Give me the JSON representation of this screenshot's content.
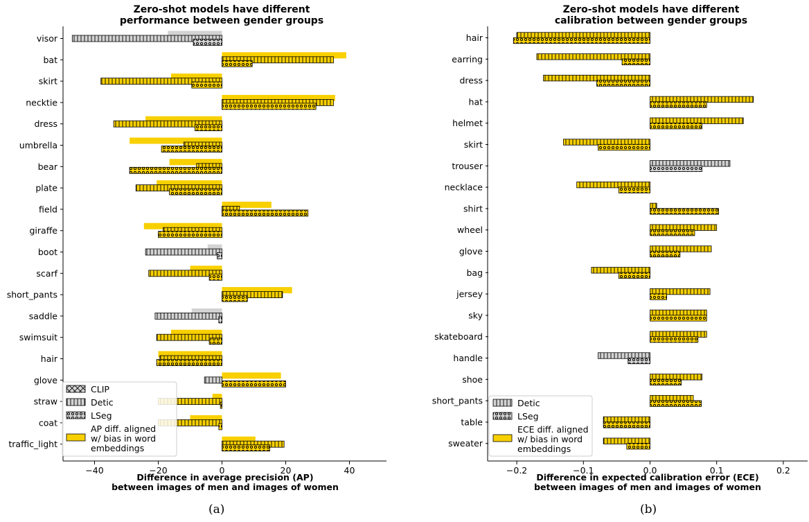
{
  "colors": {
    "bar_fill": "#f8d000",
    "other_fill": "#d3d3d3",
    "edge": "#000000"
  },
  "chart_data": [
    {
      "type": "bar",
      "orientation": "horizontal",
      "title_lines": [
        "Zero-shot models have different",
        "performance between gender groups"
      ],
      "xlabel_lines": [
        "Difference in average precision (AP)",
        "between images of men and images of women"
      ],
      "caption": "(a)",
      "xlim": [
        -50,
        50
      ],
      "xticks": [
        -40,
        -20,
        0,
        20,
        40
      ],
      "tick_labels": [
        "−40",
        "−20",
        "0",
        "20",
        "40"
      ],
      "grid": false,
      "legend_position": "bottom-left",
      "legend": [
        {
          "name": "CLIP",
          "swatch": "hatch-x"
        },
        {
          "name": "Detic",
          "swatch": "hatch-vertical"
        },
        {
          "name": "LSeg",
          "swatch": "dots"
        },
        {
          "name": "AP diff. aligned w/ bias in word embeddings",
          "lines": [
            "AP diff. aligned",
            "w/ bias in word",
            "embeddings"
          ],
          "swatch": "aligned"
        }
      ],
      "categories": [
        "visor",
        "bat",
        "skirt",
        "necktie",
        "dress",
        "umbrella",
        "bear",
        "plate",
        "field",
        "giraffe",
        "boot",
        "scarf",
        "short_pants",
        "saddle",
        "swimsuit",
        "hair",
        "glove",
        "straw",
        "coat",
        "traffic_light"
      ],
      "series": [
        {
          "name": "CLIP",
          "values": [
            -17,
            39,
            -16,
            35.5,
            -24,
            -29,
            -16.5,
            -20.5,
            15.5,
            -24.5,
            -4.5,
            -10,
            22,
            -9.5,
            -16,
            -20,
            18.5,
            -3,
            -10,
            10.5
          ],
          "aligned": [
            false,
            true,
            true,
            true,
            true,
            true,
            true,
            true,
            true,
            true,
            false,
            true,
            true,
            false,
            true,
            true,
            true,
            true,
            true,
            true
          ]
        },
        {
          "name": "Detic",
          "values": [
            -47,
            35,
            -38,
            35,
            -34,
            -12,
            -8,
            -27,
            5.5,
            -18.5,
            -24,
            -23,
            19,
            -21,
            -20.5,
            -19.5,
            -5.5,
            -20,
            -20,
            19.5
          ],
          "aligned": [
            false,
            true,
            true,
            true,
            true,
            true,
            true,
            true,
            true,
            true,
            false,
            true,
            true,
            false,
            true,
            true,
            false,
            true,
            true,
            true
          ]
        },
        {
          "name": "LSeg",
          "values": [
            -9,
            9.5,
            -9.5,
            29.5,
            -8.5,
            -19,
            -29,
            -16.5,
            27,
            -20,
            -1.5,
            -4,
            8,
            -1,
            -4,
            -20.5,
            20,
            -0.5,
            -1,
            15
          ],
          "aligned": [
            false,
            true,
            true,
            true,
            true,
            true,
            true,
            true,
            true,
            true,
            false,
            true,
            true,
            false,
            true,
            true,
            true,
            true,
            true,
            true
          ]
        }
      ]
    },
    {
      "type": "bar",
      "orientation": "horizontal",
      "title_lines": [
        "Zero-shot models have different",
        "calibration between gender groups"
      ],
      "xlabel_lines": [
        "Difference in expected calibration error (ECE)",
        "between images of men and images of women"
      ],
      "caption": "(b)",
      "xlim": [
        -0.25,
        0.25
      ],
      "xticks": [
        -0.2,
        -0.1,
        0.0,
        0.1,
        0.2
      ],
      "tick_labels": [
        "−0.2",
        "−0.1",
        "0.0",
        "0.1",
        "0.2"
      ],
      "grid": false,
      "legend_position": "bottom-left",
      "legend": [
        {
          "name": "Detic",
          "swatch": "hatch-vertical"
        },
        {
          "name": "LSeg",
          "swatch": "dots"
        },
        {
          "name": "ECE diff. aligned w/ bias in word embeddings",
          "lines": [
            "ECE diff. aligned",
            "w/ bias in word",
            "embeddings"
          ],
          "swatch": "aligned"
        }
      ],
      "categories": [
        "hair",
        "earring",
        "dress",
        "hat",
        "helmet",
        "skirt",
        "trouser",
        "necklace",
        "shirt",
        "wheel",
        "glove",
        "bag",
        "jersey",
        "sky",
        "skateboard",
        "handle",
        "shoe",
        "short_pants",
        "table",
        "sweater"
      ],
      "series": [
        {
          "name": "Detic",
          "values": [
            -0.2,
            -0.17,
            -0.16,
            0.155,
            0.14,
            -0.13,
            0.12,
            -0.11,
            0.01,
            0.1,
            0.092,
            -0.088,
            0.09,
            0.085,
            0.085,
            -0.078,
            0.078,
            0.065,
            -0.07,
            -0.07
          ],
          "aligned": [
            true,
            true,
            true,
            true,
            true,
            true,
            false,
            true,
            true,
            true,
            true,
            true,
            true,
            true,
            true,
            false,
            true,
            true,
            true,
            true
          ]
        },
        {
          "name": "LSeg",
          "values": [
            -0.205,
            -0.042,
            -0.08,
            0.085,
            0.078,
            -0.078,
            0.078,
            -0.047,
            0.103,
            0.067,
            0.045,
            -0.047,
            0.025,
            0.085,
            0.072,
            -0.033,
            0.047,
            0.077,
            -0.07,
            -0.035
          ],
          "aligned": [
            true,
            true,
            true,
            true,
            true,
            true,
            false,
            true,
            true,
            true,
            true,
            true,
            true,
            true,
            true,
            false,
            true,
            true,
            true,
            true
          ]
        }
      ]
    }
  ]
}
